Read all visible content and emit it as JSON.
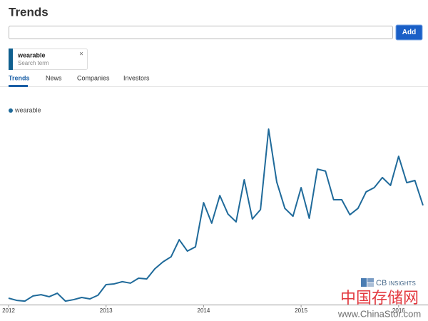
{
  "header": {
    "title": "Trends"
  },
  "search": {
    "button": "Add"
  },
  "tag": {
    "label": "wearable",
    "sublabel": "Search term",
    "close": "×"
  },
  "tabs": [
    "Trends",
    "News",
    "Companies",
    "Investors"
  ],
  "chart_data": {
    "type": "line",
    "x": [
      2012,
      2012.0833,
      2012.1667,
      2012.25,
      2012.3333,
      2012.4167,
      2012.5,
      2012.5833,
      2012.6667,
      2012.75,
      2012.8333,
      2012.9167,
      2013,
      2013.0833,
      2013.1667,
      2013.25,
      2013.3333,
      2013.4167,
      2013.5,
      2013.5833,
      2013.6667,
      2013.75,
      2013.8333,
      2013.9167,
      2014,
      2014.0833,
      2014.1667,
      2014.25,
      2014.3333,
      2014.4167,
      2014.5,
      2014.5833,
      2014.6667,
      2014.75,
      2014.8333,
      2014.9167,
      2015,
      2015.0833,
      2015.1667,
      2015.25,
      2015.3333,
      2015.4167,
      2015.5,
      2015.5833,
      2015.6667,
      2015.75,
      2015.8333,
      2015.9167,
      2016,
      2016.0833,
      2016.1667,
      2016.25
    ],
    "series": [
      {
        "name": "wearable",
        "color": "#1f6a9a",
        "values": [
          3.5,
          2.3,
          1.9,
          4.7,
          5.4,
          4.3,
          6.2,
          1.9,
          2.7,
          3.9,
          3.1,
          5.1,
          10.9,
          11.3,
          12.5,
          11.7,
          14.4,
          14.0,
          19.5,
          23.3,
          26.1,
          35.4,
          29.2,
          31.5,
          55.6,
          44.4,
          59.5,
          49.4,
          45.1,
          68.1,
          46.7,
          51.8,
          95.7,
          66.9,
          52.5,
          48.2,
          63.8,
          47.1,
          73.9,
          72.8,
          57.2,
          57.2,
          49.0,
          52.5,
          61.5,
          63.8,
          69.3,
          65.0,
          80.9,
          66.5,
          67.7,
          54.1
        ]
      }
    ],
    "xlim": [
      2012,
      2016.25
    ],
    "xticks": [
      2012,
      2013,
      2014,
      2015,
      2016
    ],
    "ylim": [
      0,
      100
    ]
  },
  "branding": {
    "logo_mark": "CB",
    "logo_text": "INSIGHTS"
  },
  "watermark": {
    "title": "中国存储网",
    "url": "www.ChinaStor.com"
  }
}
